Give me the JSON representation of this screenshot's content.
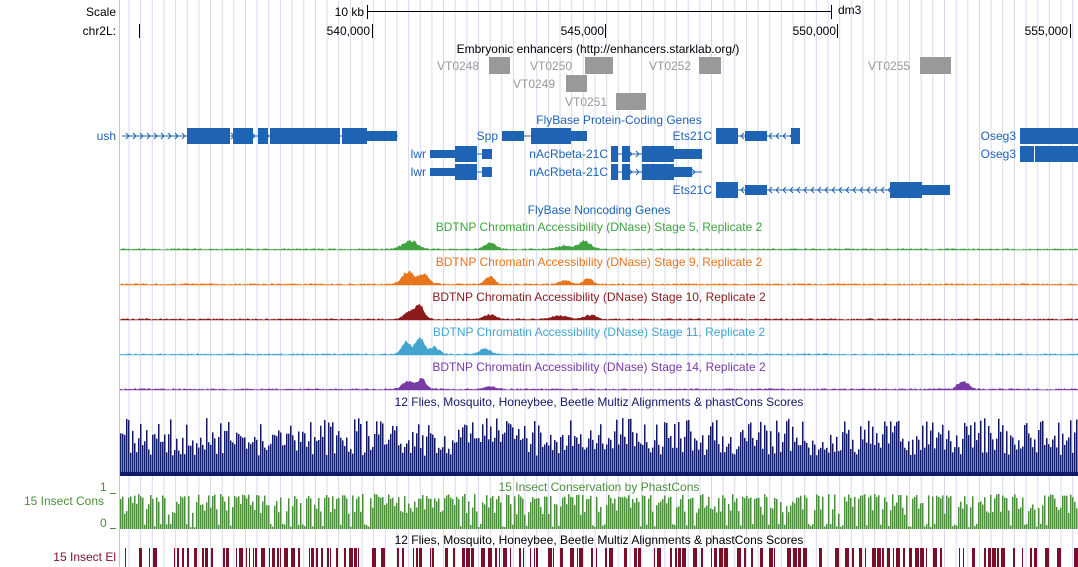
{
  "header": {
    "scale_label": "Scale",
    "scale_value": "10 kb",
    "assembly": "dm3",
    "chrom_label": "chr2L:",
    "positions": [
      "540,000",
      "545,000",
      "550,000",
      "555,000"
    ]
  },
  "colors": {
    "gene": "#1e63b4",
    "enhancer": "#999999",
    "stage5": "#3fa33f",
    "stage9": "#e8741b",
    "stage10": "#8b1a1a",
    "stage11": "#42a5d0",
    "stage14": "#7a3aa6",
    "multiz": "#111a66",
    "phastcons": "#4b8f3c",
    "elements": "#7a0f2a"
  },
  "tracks": {
    "enhancers": {
      "title": "Embryonic enhancers (http://enhancers.starklab.org/)",
      "items": [
        "VT0248",
        "VT0250",
        "VT0252",
        "VT0255",
        "VT0249",
        "VT0251"
      ]
    },
    "genes": {
      "title": "FlyBase Protein-Coding Genes",
      "names": [
        "ush",
        "Spp",
        "Ets21C",
        "Oseg3",
        "lwr",
        "nAcRbeta-21C",
        "Oseg3",
        "lwr",
        "nAcRbeta-21C",
        "Ets21C"
      ]
    },
    "noncoding": {
      "title": "FlyBase Noncoding Genes"
    },
    "dnase": [
      {
        "title": "BDTNP Chromatin Accessibility (DNase) Stage 5, Replicate 2"
      },
      {
        "title": "BDTNP Chromatin Accessibility (DNase) Stage 9, Replicate 2"
      },
      {
        "title": "BDTNP Chromatin Accessibility (DNase) Stage 10, Replicate 2"
      },
      {
        "title": "BDTNP Chromatin Accessibility (DNase) Stage 11, Replicate 2"
      },
      {
        "title": "BDTNP Chromatin Accessibility (DNase) Stage 14, Replicate 2"
      }
    ],
    "multiz": {
      "title": "12 Flies, Mosquito, Honeybee, Beetle Multiz Alignments & phastCons Scores"
    },
    "phastcons": {
      "title": "15 Insect Conservation by PhastCons",
      "side_label": "15 Insect Cons",
      "max_label": "1",
      "min_label": "0"
    },
    "elements": {
      "title": "12 Flies, Mosquito, Honeybee, Beetle Multiz Alignments & phastCons Scores",
      "side_label": "15 Insect El"
    }
  }
}
